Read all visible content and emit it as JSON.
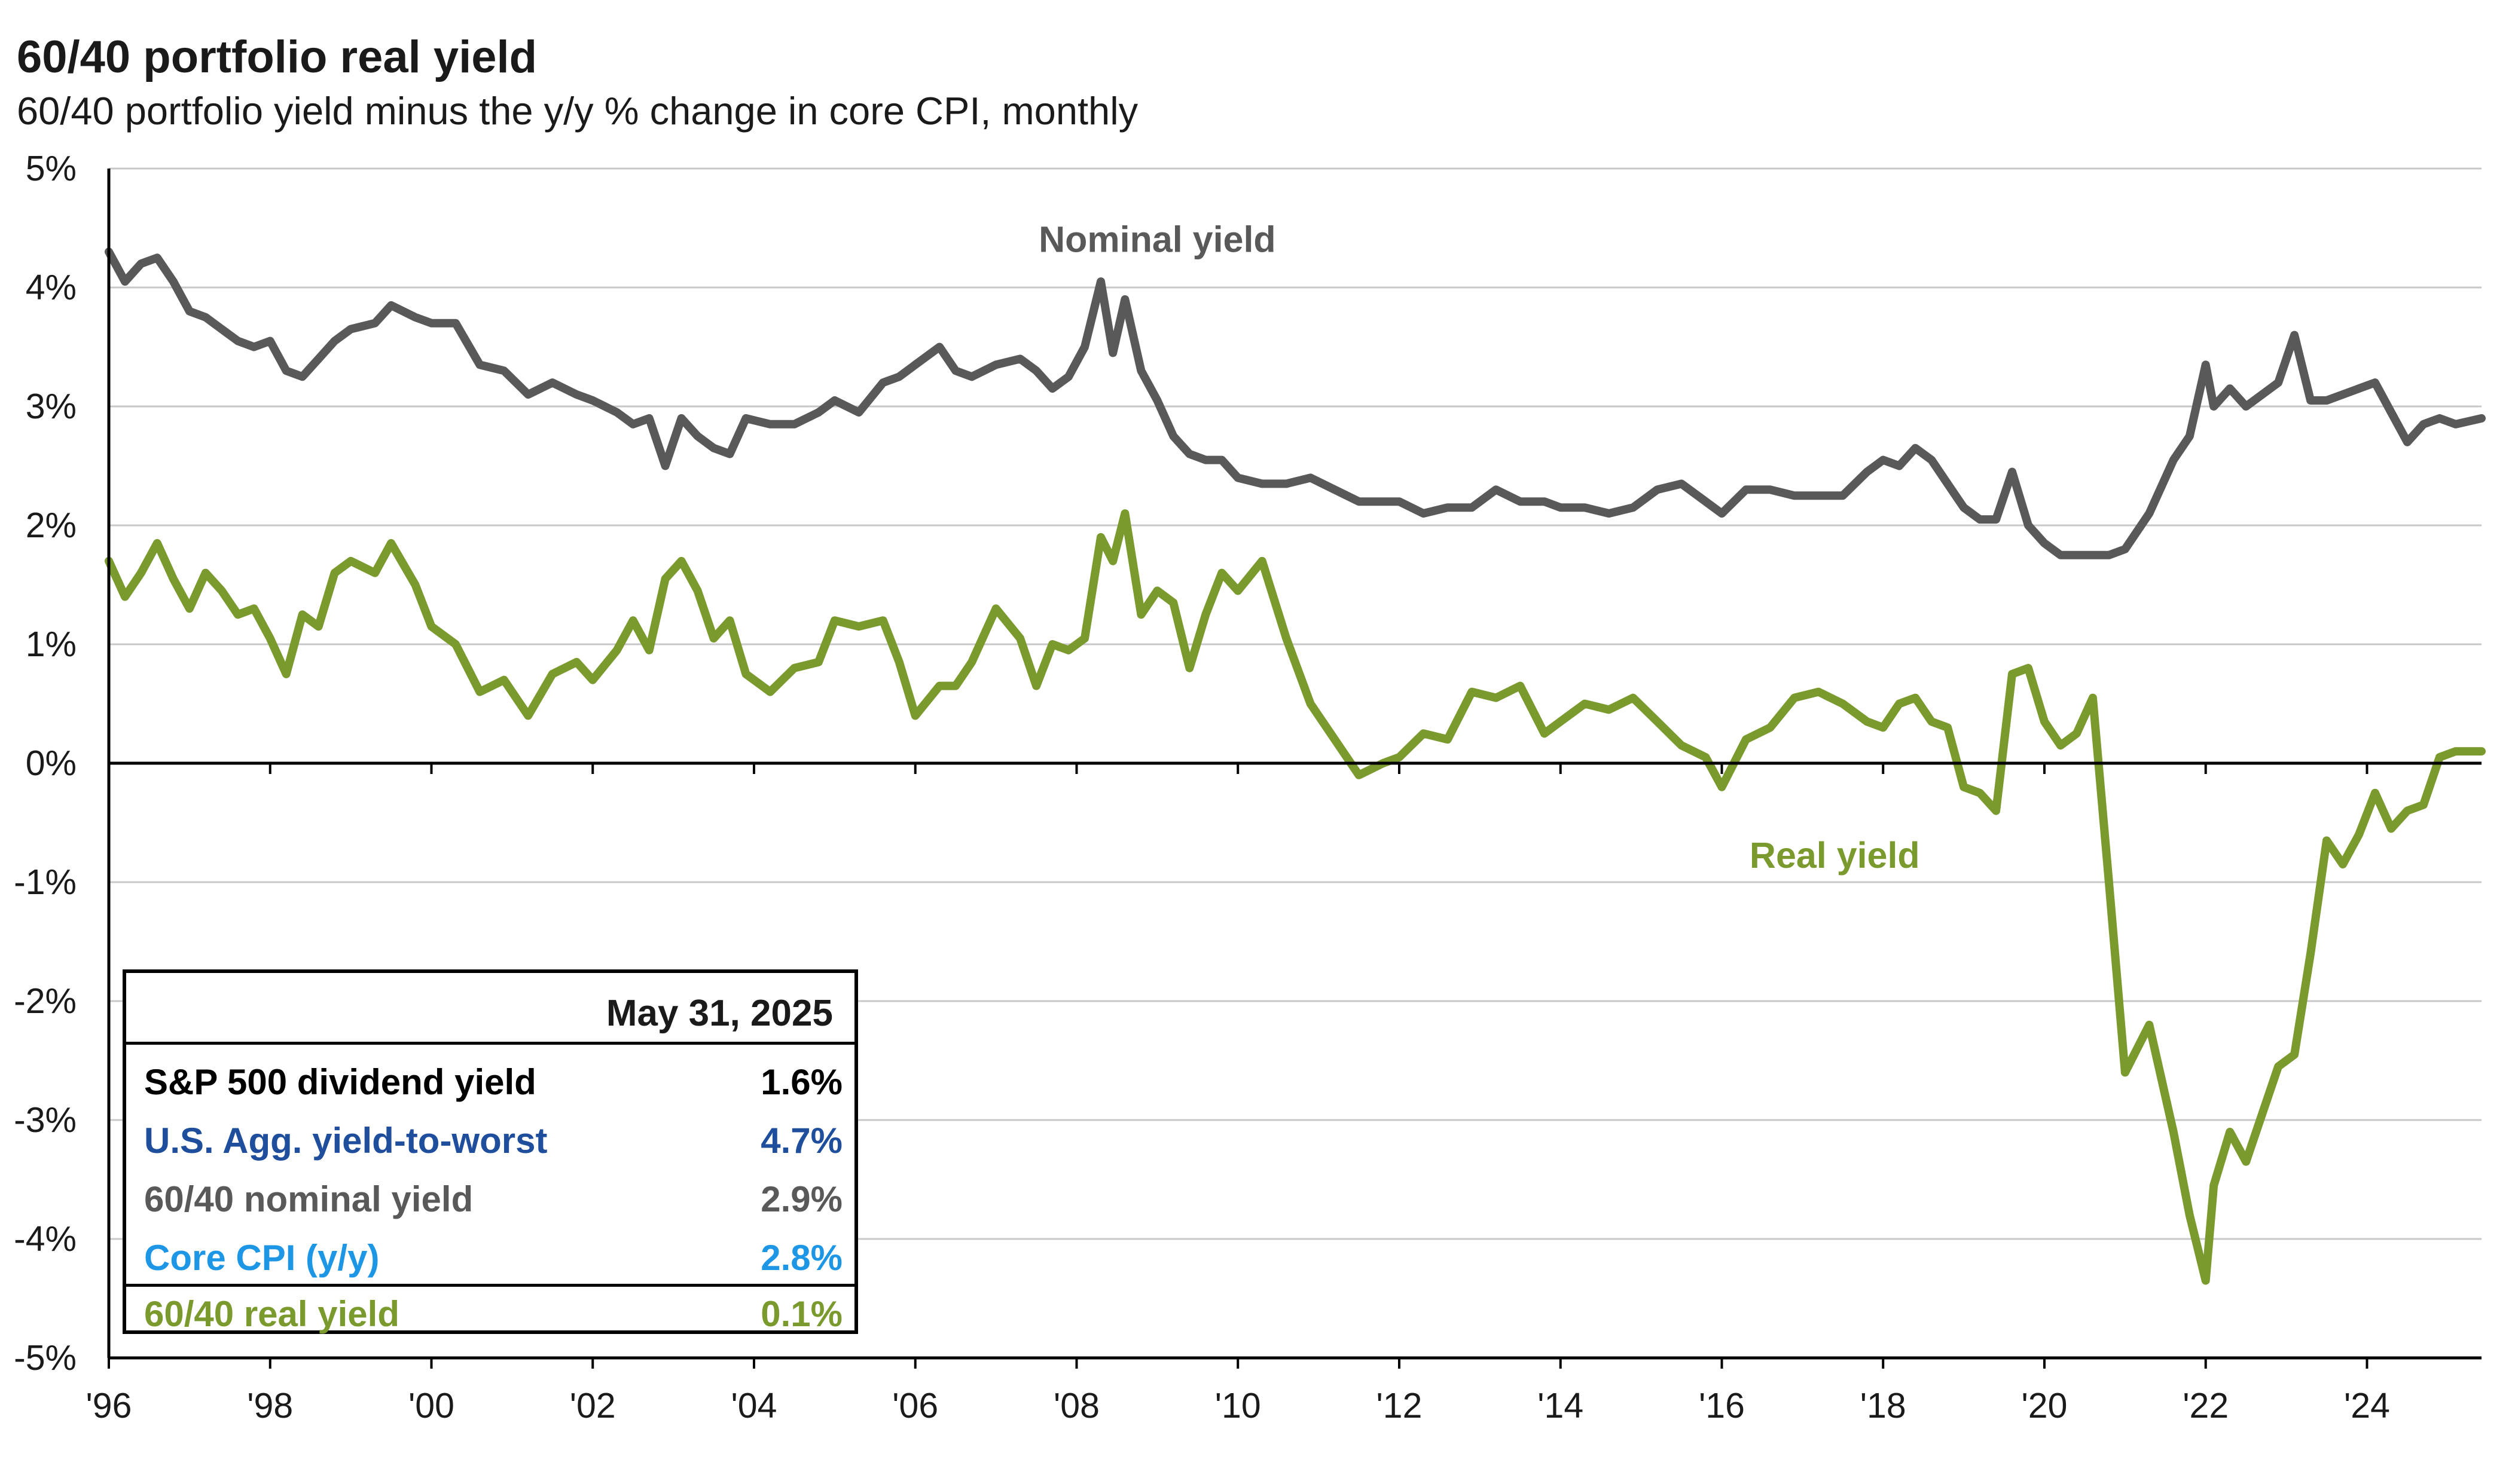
{
  "header": {
    "title": "60/40 portfolio real yield",
    "subtitle": "60/40 portfolio yield minus the y/y % change in core CPI, monthly"
  },
  "summary_table": {
    "header": "May 31, 2025",
    "rows": [
      {
        "label": "S&P 500 dividend yield",
        "value": "1.6%",
        "color": "#000000"
      },
      {
        "label": "U.S. Agg. yield-to-worst",
        "value": "4.7%",
        "color": "#1f4e9c"
      },
      {
        "label": "60/40 nominal yield",
        "value": "2.9%",
        "color": "#595959"
      },
      {
        "label": "Core CPI (y/y)",
        "value": "2.8%",
        "color": "#1e96e6"
      },
      {
        "label": "60/40 real yield",
        "value": "0.1%",
        "color": "#7a9a2e"
      }
    ]
  },
  "chart_data": {
    "type": "line",
    "title": "60/40 portfolio real yield",
    "subtitle": "60/40 portfolio yield minus the y/y % change in core CPI, monthly",
    "xlabel": "",
    "ylabel": "",
    "xlim": [
      1996,
      2025.42
    ],
    "ylim": [
      -5,
      5
    ],
    "grid": true,
    "y_ticks": [
      5,
      4,
      3,
      2,
      1,
      0,
      -1,
      -2,
      -3,
      -4,
      -5
    ],
    "y_tick_labels": [
      "5%",
      "4%",
      "3%",
      "2%",
      "1%",
      "0%",
      "-1%",
      "-2%",
      "-3%",
      "-4%",
      "-5%"
    ],
    "x_ticks": [
      1996,
      1998,
      2000,
      2002,
      2004,
      2006,
      2008,
      2010,
      2012,
      2014,
      2016,
      2018,
      2020,
      2022,
      2024
    ],
    "x_tick_labels": [
      "'96",
      "'98",
      "'00",
      "'02",
      "'04",
      "'06",
      "'08",
      "'10",
      "'12",
      "'14",
      "'16",
      "'18",
      "'20",
      "'22",
      "'24"
    ],
    "annotations": [
      {
        "text": "Nominal yield",
        "series": "Nominal yield",
        "x": 2009.0,
        "y": 4.3
      },
      {
        "text": "Real yield",
        "series": "Real yield",
        "x": 2017.4,
        "y": -0.88
      }
    ],
    "series": [
      {
        "name": "Nominal yield",
        "color": "#595959",
        "x": [
          1996.0,
          1996.2,
          1996.4,
          1996.6,
          1996.8,
          1997.0,
          1997.2,
          1997.4,
          1997.6,
          1997.8,
          1998.0,
          1998.2,
          1998.4,
          1998.6,
          1998.8,
          1999.0,
          1999.3,
          1999.5,
          1999.8,
          2000.0,
          2000.3,
          2000.6,
          2000.9,
          2001.2,
          2001.5,
          2001.8,
          2002.0,
          2002.3,
          2002.5,
          2002.7,
          2002.9,
          2003.1,
          2003.3,
          2003.5,
          2003.7,
          2003.9,
          2004.2,
          2004.5,
          2004.8,
          2005.0,
          2005.3,
          2005.6,
          2005.8,
          2006.0,
          2006.3,
          2006.5,
          2006.7,
          2007.0,
          2007.3,
          2007.5,
          2007.7,
          2007.9,
          2008.1,
          2008.3,
          2008.45,
          2008.6,
          2008.8,
          2009.0,
          2009.2,
          2009.4,
          2009.6,
          2009.8,
          2010.0,
          2010.3,
          2010.6,
          2010.9,
          2011.2,
          2011.5,
          2011.8,
          2012.0,
          2012.3,
          2012.6,
          2012.9,
          2013.2,
          2013.5,
          2013.8,
          2014.0,
          2014.3,
          2014.6,
          2014.9,
          2015.2,
          2015.5,
          2015.8,
          2016.0,
          2016.3,
          2016.6,
          2016.9,
          2017.2,
          2017.5,
          2017.8,
          2018.0,
          2018.2,
          2018.4,
          2018.6,
          2018.8,
          2019.0,
          2019.2,
          2019.4,
          2019.6,
          2019.8,
          2020.0,
          2020.2,
          2020.4,
          2020.6,
          2020.8,
          2021.0,
          2021.3,
          2021.6,
          2021.8,
          2022.0,
          2022.1,
          2022.3,
          2022.5,
          2022.7,
          2022.9,
          2023.1,
          2023.3,
          2023.5,
          2023.7,
          2023.9,
          2024.1,
          2024.3,
          2024.5,
          2024.7,
          2024.9,
          2025.1,
          2025.42
        ],
        "values": [
          4.3,
          4.05,
          4.2,
          4.25,
          4.05,
          3.8,
          3.75,
          3.65,
          3.55,
          3.5,
          3.55,
          3.3,
          3.25,
          3.4,
          3.55,
          3.65,
          3.7,
          3.85,
          3.75,
          3.7,
          3.7,
          3.35,
          3.3,
          3.1,
          3.2,
          3.1,
          3.05,
          2.95,
          2.85,
          2.9,
          2.5,
          2.9,
          2.75,
          2.65,
          2.6,
          2.9,
          2.85,
          2.85,
          2.95,
          3.05,
          2.95,
          3.2,
          3.25,
          3.35,
          3.5,
          3.3,
          3.25,
          3.35,
          3.4,
          3.3,
          3.15,
          3.25,
          3.5,
          4.05,
          3.45,
          3.9,
          3.3,
          3.05,
          2.75,
          2.6,
          2.55,
          2.55,
          2.4,
          2.35,
          2.35,
          2.4,
          2.3,
          2.2,
          2.2,
          2.2,
          2.1,
          2.15,
          2.15,
          2.3,
          2.2,
          2.2,
          2.15,
          2.15,
          2.1,
          2.15,
          2.3,
          2.35,
          2.2,
          2.1,
          2.3,
          2.3,
          2.25,
          2.25,
          2.25,
          2.45,
          2.55,
          2.5,
          2.65,
          2.55,
          2.35,
          2.15,
          2.05,
          2.05,
          2.45,
          2.0,
          1.85,
          1.75,
          1.75,
          1.75,
          1.75,
          1.8,
          2.1,
          2.55,
          2.75,
          3.35,
          3.0,
          3.15,
          3.0,
          3.1,
          3.2,
          3.6,
          3.05,
          3.05,
          3.1,
          3.15,
          3.2,
          2.95,
          2.7,
          2.85,
          2.9,
          2.85,
          2.9
        ]
      },
      {
        "name": "Real yield",
        "color": "#7a9a2e",
        "x": [
          1996.0,
          1996.2,
          1996.4,
          1996.6,
          1996.8,
          1997.0,
          1997.2,
          1997.4,
          1997.6,
          1997.8,
          1998.0,
          1998.2,
          1998.4,
          1998.6,
          1998.8,
          1999.0,
          1999.3,
          1999.5,
          1999.8,
          2000.0,
          2000.3,
          2000.6,
          2000.9,
          2001.2,
          2001.5,
          2001.8,
          2002.0,
          2002.3,
          2002.5,
          2002.7,
          2002.9,
          2003.1,
          2003.3,
          2003.5,
          2003.7,
          2003.9,
          2004.2,
          2004.5,
          2004.8,
          2005.0,
          2005.3,
          2005.6,
          2005.8,
          2006.0,
          2006.3,
          2006.5,
          2006.7,
          2007.0,
          2007.3,
          2007.5,
          2007.7,
          2007.9,
          2008.1,
          2008.3,
          2008.45,
          2008.6,
          2008.8,
          2009.0,
          2009.2,
          2009.4,
          2009.6,
          2009.8,
          2010.0,
          2010.3,
          2010.6,
          2010.9,
          2011.2,
          2011.5,
          2011.8,
          2012.0,
          2012.3,
          2012.6,
          2012.9,
          2013.2,
          2013.5,
          2013.8,
          2014.0,
          2014.3,
          2014.6,
          2014.9,
          2015.2,
          2015.5,
          2015.8,
          2016.0,
          2016.3,
          2016.6,
          2016.9,
          2017.2,
          2017.5,
          2017.8,
          2018.0,
          2018.2,
          2018.4,
          2018.6,
          2018.8,
          2019.0,
          2019.2,
          2019.4,
          2019.6,
          2019.8,
          2020.0,
          2020.2,
          2020.4,
          2020.6,
          2020.8,
          2021.0,
          2021.3,
          2021.6,
          2021.8,
          2022.0,
          2022.1,
          2022.3,
          2022.5,
          2022.7,
          2022.9,
          2023.1,
          2023.3,
          2023.5,
          2023.7,
          2023.9,
          2024.1,
          2024.3,
          2024.5,
          2024.7,
          2024.9,
          2025.1,
          2025.42
        ],
        "values": [
          1.7,
          1.4,
          1.6,
          1.85,
          1.55,
          1.3,
          1.6,
          1.45,
          1.25,
          1.3,
          1.05,
          0.75,
          1.25,
          1.15,
          1.6,
          1.7,
          1.6,
          1.85,
          1.5,
          1.15,
          1.0,
          0.6,
          0.7,
          0.4,
          0.75,
          0.85,
          0.7,
          0.95,
          1.2,
          0.95,
          1.55,
          1.7,
          1.45,
          1.05,
          1.2,
          0.75,
          0.6,
          0.8,
          0.85,
          1.2,
          1.15,
          1.2,
          0.85,
          0.4,
          0.65,
          0.65,
          0.85,
          1.3,
          1.05,
          0.65,
          1.0,
          0.95,
          1.05,
          1.9,
          1.7,
          2.1,
          1.25,
          1.45,
          1.35,
          0.8,
          1.25,
          1.6,
          1.45,
          1.7,
          1.05,
          0.5,
          0.2,
          -0.1,
          0.0,
          0.05,
          0.25,
          0.2,
          0.6,
          0.55,
          0.65,
          0.25,
          0.35,
          0.5,
          0.45,
          0.55,
          0.35,
          0.15,
          0.05,
          -0.2,
          0.2,
          0.3,
          0.55,
          0.6,
          0.5,
          0.35,
          0.3,
          0.5,
          0.55,
          0.35,
          0.3,
          -0.2,
          -0.25,
          -0.4,
          0.75,
          0.8,
          0.35,
          0.15,
          0.25,
          0.55,
          -1.0,
          -2.6,
          -2.2,
          -3.1,
          -3.8,
          -4.35,
          -3.55,
          -3.1,
          -3.35,
          -2.95,
          -2.55,
          -2.45,
          -1.6,
          -0.65,
          -0.85,
          -0.6,
          -0.25,
          -0.55,
          -0.4,
          -0.35,
          0.05,
          0.1,
          0.1
        ]
      }
    ]
  }
}
